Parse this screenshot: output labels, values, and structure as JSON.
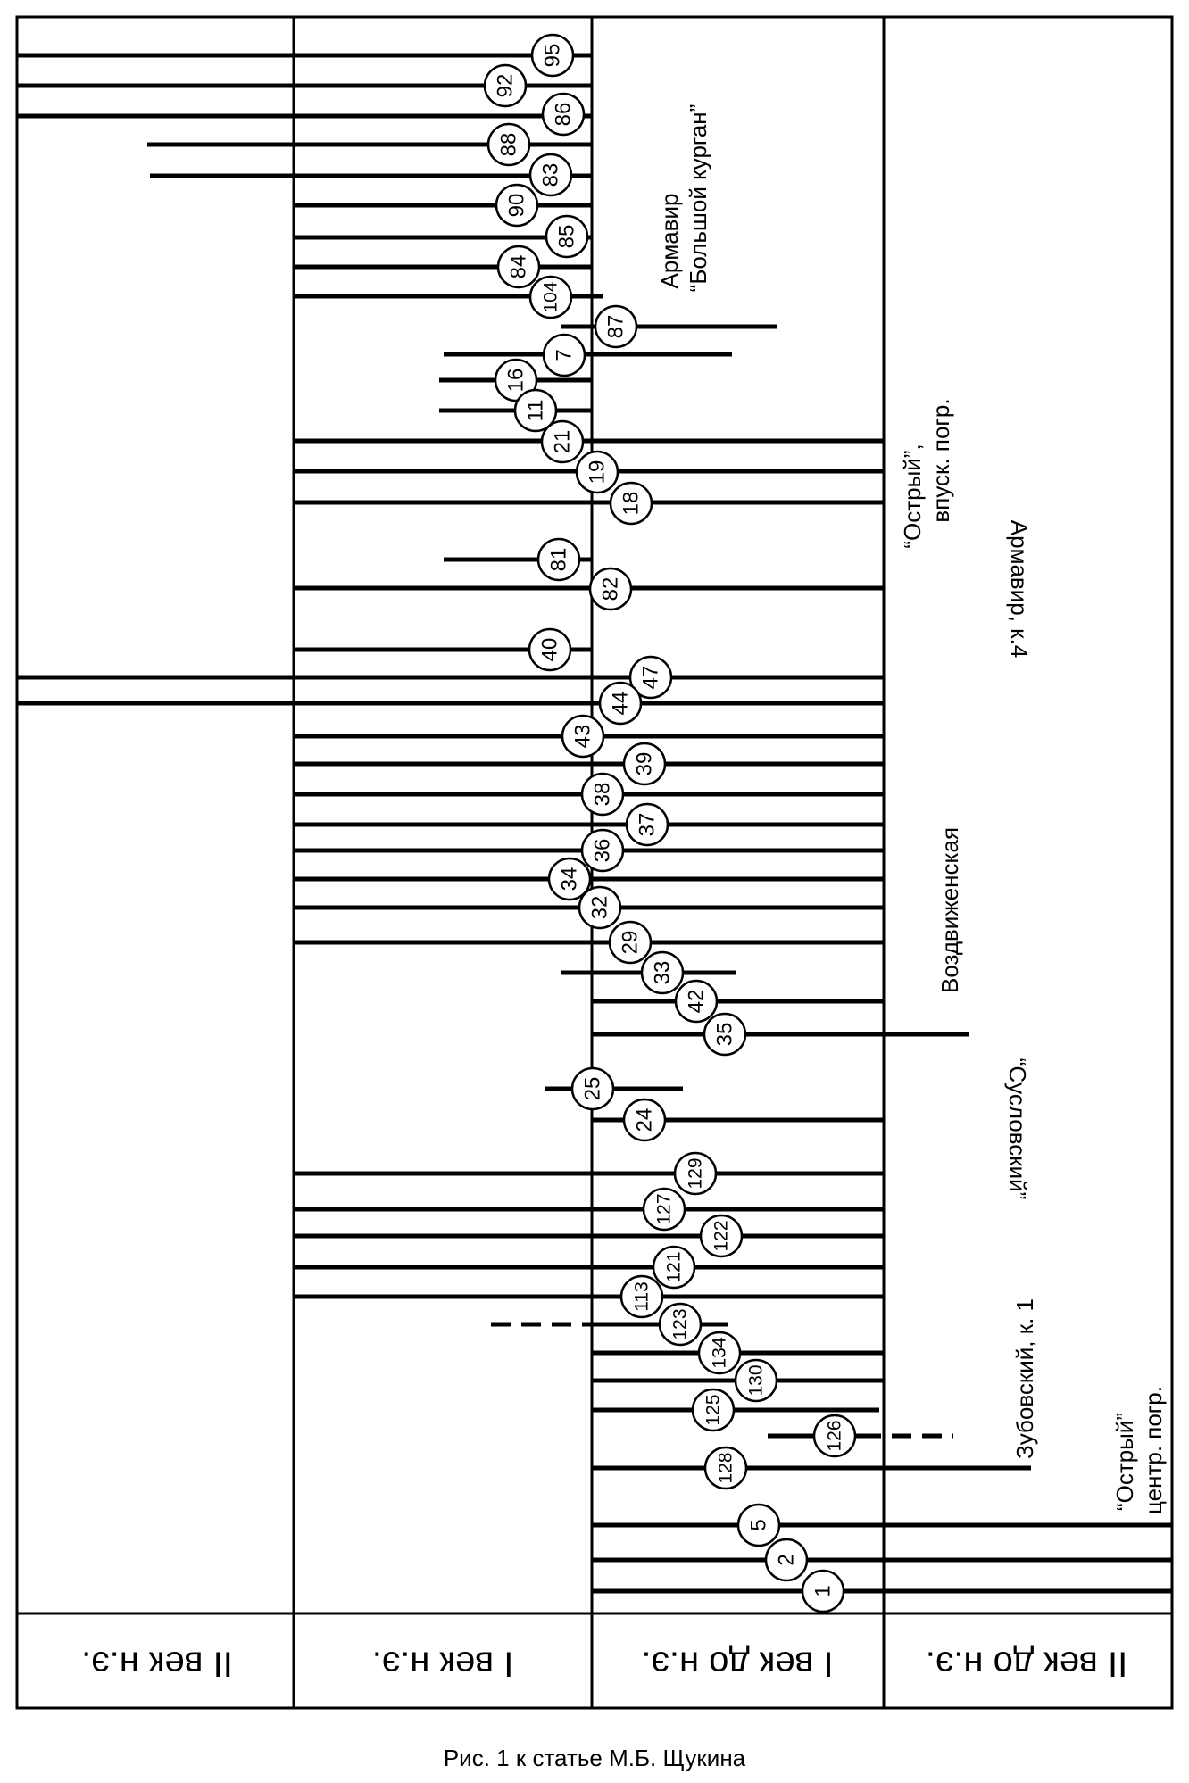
{
  "caption": "Рис. 1 к статье М.Б. Щукина",
  "centuries": [
    "II век н.э.",
    "I век н.э.",
    "I век до н.э.",
    "II век до н.э."
  ],
  "group_labels": {
    "armavir_big": [
      "Армавир",
      "“Большой курган”"
    ],
    "ostry_vpusk": [
      "“Острый”,",
      "впуск. погр."
    ],
    "armavir_k4": "Армавир, к.4",
    "vozdvizhenskaya": "Воздвиженская",
    "suslovsky": "“Сусловский”",
    "zubovsky": "Зубовский, к. 1",
    "ostry_centr": [
      "“Острый”",
      "центр. погр."
    ]
  },
  "finds": [
    {
      "id": "95"
    },
    {
      "id": "92"
    },
    {
      "id": "86"
    },
    {
      "id": "88"
    },
    {
      "id": "83"
    },
    {
      "id": "90"
    },
    {
      "id": "85"
    },
    {
      "id": "84"
    },
    {
      "id": "104"
    },
    {
      "id": "87"
    },
    {
      "id": "7"
    },
    {
      "id": "16"
    },
    {
      "id": "11"
    },
    {
      "id": "21"
    },
    {
      "id": "19"
    },
    {
      "id": "18"
    },
    {
      "id": "81"
    },
    {
      "id": "82"
    },
    {
      "id": "40"
    },
    {
      "id": "47"
    },
    {
      "id": "44"
    },
    {
      "id": "43"
    },
    {
      "id": "39"
    },
    {
      "id": "38"
    },
    {
      "id": "37"
    },
    {
      "id": "36"
    },
    {
      "id": "34"
    },
    {
      "id": "32"
    },
    {
      "id": "29"
    },
    {
      "id": "33"
    },
    {
      "id": "42"
    },
    {
      "id": "35"
    },
    {
      "id": "25"
    },
    {
      "id": "24"
    },
    {
      "id": "129"
    },
    {
      "id": "127"
    },
    {
      "id": "122"
    },
    {
      "id": "121"
    },
    {
      "id": "113"
    },
    {
      "id": "123"
    },
    {
      "id": "134"
    },
    {
      "id": "130"
    },
    {
      "id": "125"
    },
    {
      "id": "126"
    },
    {
      "id": "128"
    },
    {
      "id": "5"
    },
    {
      "id": "2"
    },
    {
      "id": "1"
    }
  ]
}
